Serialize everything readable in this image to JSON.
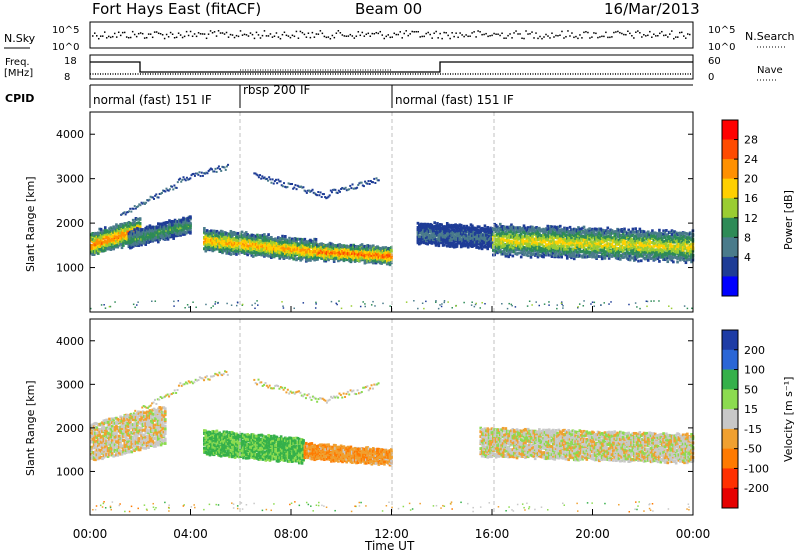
{
  "header": {
    "title": "Fort Hays East (fitACF)",
    "beam": "Beam 00",
    "date": "16/Mar/2013"
  },
  "top_panels": {
    "noise": {
      "left_label": "N.Sky",
      "right_label": "N.Search",
      "left_ticks": [
        "10^5",
        "10^0"
      ],
      "right_ticks": [
        "10^5",
        "10^0"
      ]
    },
    "freq": {
      "left_label": "Freq.",
      "left_unit": "[MHz]",
      "right_label": "Nave",
      "left_ticks": [
        "18",
        "8"
      ],
      "right_ticks": [
        "60",
        "0"
      ]
    },
    "cpid": {
      "label": "CPID",
      "segments": [
        {
          "start_h": 0,
          "end_h": 6,
          "text": "normal (fast) 151 IF"
        },
        {
          "start_h": 6,
          "end_h": 12,
          "text": "rbsp 200 IF"
        },
        {
          "start_h": 12,
          "end_h": 24,
          "text": "normal (fast) 151 IF"
        }
      ]
    }
  },
  "power_colorbar": {
    "label": "Power [dB]",
    "ticks": [
      "28",
      "24",
      "20",
      "16",
      "12",
      "8",
      "4"
    ],
    "colors": [
      "#ff0000",
      "#ff4b00",
      "#ff9000",
      "#ffd000",
      "#9acd32",
      "#2e8b57",
      "#4a7b8b",
      "#1e3c96",
      "#0000ff"
    ]
  },
  "velocity_colorbar": {
    "label": "Velocity [m s⁻¹]",
    "ticks": [
      "200",
      "100",
      "50",
      "15",
      "-15",
      "-50",
      "-100",
      "-200"
    ],
    "colors": [
      "#1e3ca5",
      "#2a66d6",
      "#35b04a",
      "#8cdb50",
      "#c8c8c8",
      "#f0a030",
      "#ff7a00",
      "#ff3000",
      "#e60000"
    ]
  },
  "axes": {
    "ylabel": "Slant Range [km]",
    "yticks": [
      "4000",
      "3000",
      "2000",
      "1000"
    ],
    "xlabel": "Time UT",
    "xticks": [
      "00:00",
      "04:00",
      "08:00",
      "12:00",
      "16:00",
      "20:00",
      "00:00"
    ]
  },
  "chart_data": [
    {
      "type": "heatmap",
      "name": "power",
      "x_range_h": [
        0,
        24
      ],
      "y_range_km": [
        0,
        4500
      ],
      "echo_bands": [
        {
          "start_h": 0.0,
          "end_h": 2.0,
          "center_km_start": 1550,
          "center_km_end": 1900,
          "width_km": 500,
          "peak_db": 26
        },
        {
          "start_h": 1.5,
          "end_h": 4.0,
          "center_km_start": 1650,
          "center_km_end": 2000,
          "width_km": 350,
          "peak_db": 14
        },
        {
          "start_h": 4.5,
          "end_h": 9.0,
          "center_km_start": 1650,
          "center_km_end": 1400,
          "width_km": 450,
          "peak_db": 24
        },
        {
          "start_h": 9.0,
          "end_h": 12.0,
          "center_km_start": 1400,
          "center_km_end": 1300,
          "width_km": 350,
          "peak_db": 28
        },
        {
          "start_h": 13.0,
          "end_h": 16.0,
          "center_km_start": 1800,
          "center_km_end": 1700,
          "width_km": 450,
          "peak_db": 8
        },
        {
          "start_h": 16.0,
          "end_h": 24.0,
          "center_km_start": 1650,
          "center_km_end": 1500,
          "width_km": 650,
          "peak_db": 20
        }
      ],
      "upper_arcs": [
        {
          "start_h": 1.2,
          "end_h": 3.5,
          "km_start": 2200,
          "km_end": 2900,
          "peak_db": 6
        },
        {
          "start_h": 3.5,
          "end_h": 5.5,
          "km_start": 3000,
          "km_end": 3300,
          "peak_db": 5
        },
        {
          "start_h": 6.5,
          "end_h": 9.5,
          "km_start": 3100,
          "km_end": 2600,
          "peak_db": 5
        },
        {
          "start_h": 9.5,
          "end_h": 11.5,
          "km_start": 2700,
          "km_end": 3000,
          "peak_db": 5
        }
      ]
    },
    {
      "type": "heatmap",
      "name": "velocity",
      "x_range_h": [
        0,
        24
      ],
      "y_range_km": [
        0,
        4500
      ],
      "echo_bands": [
        {
          "start_h": 0.0,
          "end_h": 3.0,
          "center_km_start": 1700,
          "center_km_end": 2100,
          "width_km": 800,
          "velocity": -5
        },
        {
          "start_h": 4.5,
          "end_h": 8.5,
          "center_km_start": 1700,
          "center_km_end": 1500,
          "width_km": 500,
          "velocity": 60
        },
        {
          "start_h": 8.5,
          "end_h": 12.0,
          "center_km_start": 1500,
          "center_km_end": 1350,
          "width_km": 300,
          "velocity": -40
        },
        {
          "start_h": 15.5,
          "end_h": 24.0,
          "center_km_start": 1700,
          "center_km_end": 1550,
          "width_km": 600,
          "velocity": 0
        }
      ]
    }
  ]
}
